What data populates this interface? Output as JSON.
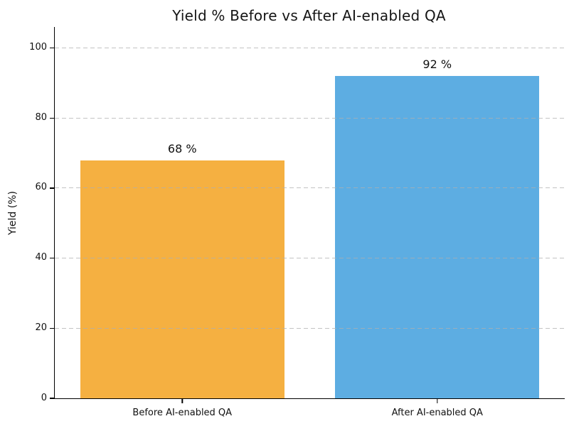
{
  "chart_data": {
    "type": "bar",
    "title": "Yield % Before vs After AI-enabled QA",
    "ylabel": "Yield (%)",
    "xlabel": "",
    "categories": [
      "Before AI-enabled QA",
      "After AI-enabled QA"
    ],
    "values": [
      68,
      92
    ],
    "value_labels": [
      "68 %",
      "92 %"
    ],
    "bar_colors": [
      "#F5B041",
      "#5DADE2"
    ],
    "yticks": [
      0,
      20,
      40,
      60,
      80,
      100
    ],
    "ylim": [
      0,
      106
    ],
    "grid": "horizontal dashed lightgray, drawn above bars",
    "legend": "none",
    "spines": [
      "left",
      "bottom"
    ]
  }
}
